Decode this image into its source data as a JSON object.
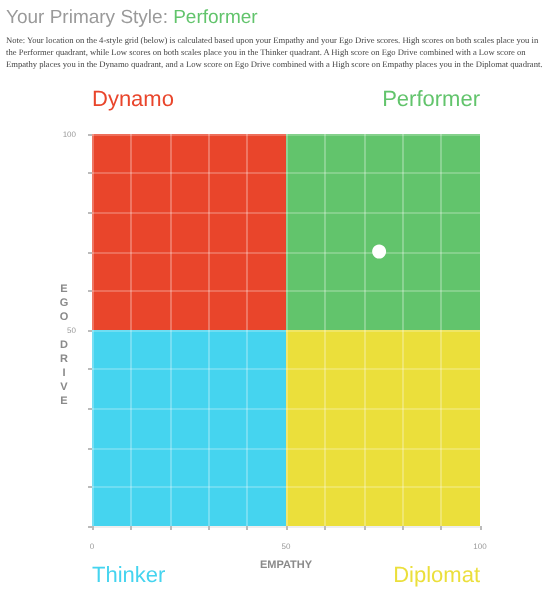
{
  "chart_data": {
    "type": "bar",
    "stacked": true,
    "title": "Your Primary Style: Performer",
    "subtitle": "Note: Your location on the 4-style grid (below) is calculated based upon your Empathy and your Ego Drive scores. High scores on both scales place you in the Performer quadrant, while Low scores on both scales place you in the Thinker quadrant. A High score on Ego Drive combined with a Low score on Empathy places you in the Dynamo quadrant, and a Low score on Ego Drive combined with a High score on Empathy places you in the Diplomat quadrant.",
    "xlabel": "EMPATHY",
    "ylabel": "EGO DRIVE",
    "annotations": [
      "Dynamo",
      "Performer",
      "Thinker",
      "Diplomat"
    ],
    "series": [
      {
        "x": [
          25,
          75
        ],
        "values": [
          50,
          50
        ],
        "colors": [
          "#45d4ef",
          "#ebdf3b"
        ]
      },
      {
        "x": [
          25,
          75
        ],
        "values": [
          50,
          50
        ],
        "colors": [
          "#e9452b",
          "#62c46c"
        ]
      },
      {
        "type": "scatter",
        "color": "#ffffff",
        "x": [
          74
        ],
        "values": [
          70
        ]
      }
    ],
    "xlim": [
      0,
      100
    ],
    "ylim": [
      0,
      100
    ],
    "xticks": [
      0,
      {
        "value": 10,
        "label": null
      },
      {
        "value": 20,
        "label": null
      },
      {
        "value": 30,
        "label": null
      },
      {
        "value": 40,
        "label": null
      },
      50,
      {
        "value": 60,
        "label": null
      },
      {
        "value": 70,
        "label": null
      },
      {
        "value": 80,
        "label": null
      },
      {
        "value": 90,
        "label": null
      },
      100
    ],
    "yticks": [
      {
        "value": 0,
        "label": null
      },
      {
        "value": 10,
        "label": null
      },
      {
        "value": 20,
        "label": null
      },
      {
        "value": 30,
        "label": null
      },
      {
        "value": 40,
        "label": null
      },
      50,
      {
        "value": 60,
        "label": null
      },
      {
        "value": 70,
        "label": null
      },
      {
        "value": 80,
        "label": null
      },
      {
        "value": 90,
        "label": null
      },
      100
    ],
    "grid": true,
    "marker": "circle"
  }
}
